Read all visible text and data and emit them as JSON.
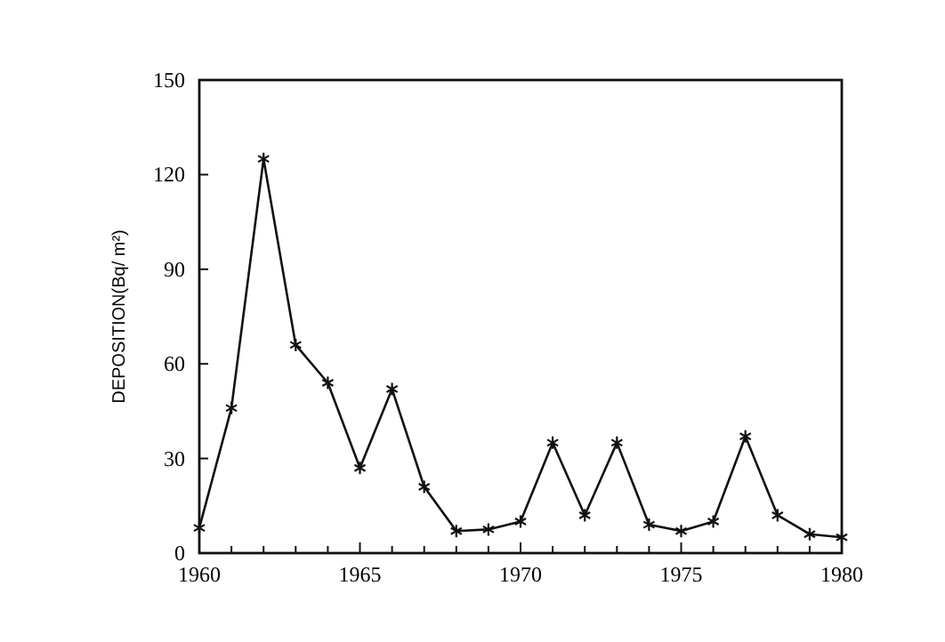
{
  "chart_data": {
    "type": "line",
    "ylabel": "DEPOSITION(Bq/ m²)",
    "x": [
      1960,
      1961,
      1962,
      1963,
      1964,
      1965,
      1966,
      1967,
      1968,
      1969,
      1970,
      1971,
      1972,
      1973,
      1974,
      1975,
      1976,
      1977,
      1978,
      1979,
      1980
    ],
    "series": [
      {
        "color": "#111111",
        "values": [
          8,
          46,
          125,
          66,
          54,
          27,
          52,
          21,
          7,
          7.5,
          10,
          35,
          12,
          35,
          9,
          7,
          10,
          37,
          12,
          6,
          5
        ]
      }
    ],
    "xlim": [
      1960,
      1980
    ],
    "ylim": [
      0,
      150
    ],
    "xticks": [
      1960,
      {
        "value": 1961,
        "label": null
      },
      {
        "value": 1962,
        "label": null
      },
      {
        "value": 1963,
        "label": null
      },
      {
        "value": 1964,
        "label": null
      },
      1965,
      {
        "value": 1966,
        "label": null
      },
      {
        "value": 1967,
        "label": null
      },
      {
        "value": 1968,
        "label": null
      },
      {
        "value": 1969,
        "label": null
      },
      1970,
      {
        "value": 1971,
        "label": null
      },
      {
        "value": 1972,
        "label": null
      },
      {
        "value": 1973,
        "label": null
      },
      {
        "value": 1974,
        "label": null
      },
      1975,
      {
        "value": 1976,
        "label": null
      },
      {
        "value": 1977,
        "label": null
      },
      {
        "value": 1978,
        "label": null
      },
      {
        "value": 1979,
        "label": null
      },
      1980
    ],
    "yticks": [
      0,
      30,
      60,
      90,
      120,
      150
    ],
    "grid": false,
    "marker": "cross",
    "line_style": "solid"
  }
}
